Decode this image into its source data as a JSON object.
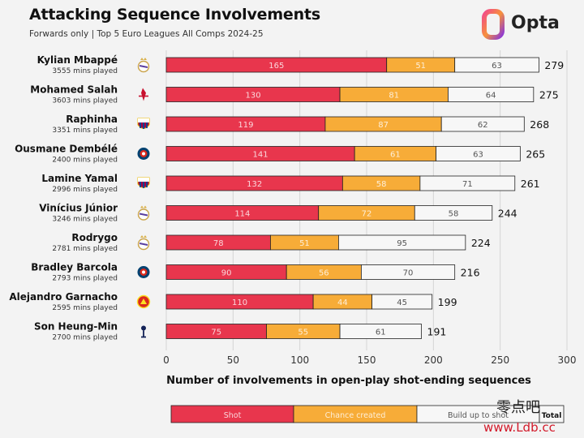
{
  "header": {
    "title": "Attacking Sequence Involvements",
    "subtitle": "Forwards only | Top 5 Euro Leagues All Comps 2024-25"
  },
  "brand": {
    "logo_text": "Opta"
  },
  "watermark": {
    "text": "零点吧",
    "url": "www.Ldb.cc"
  },
  "colors": {
    "shot": "#e8364d",
    "chance": "#f7ac38",
    "buildup": "#f7f7f7",
    "grid": "#d4d4d4"
  },
  "chart_data": {
    "type": "bar",
    "orientation": "horizontal",
    "stacked": true,
    "xlabel": "Number of involvements in open-play shot-ending sequences",
    "xlim": [
      0,
      300
    ],
    "xticks": [
      0,
      50,
      100,
      150,
      200,
      250,
      300
    ],
    "grid": true,
    "players": [
      {
        "name": "Kylian Mbappé",
        "mins": "3555 mins played",
        "crest": "real-madrid-crest-icon"
      },
      {
        "name": "Mohamed Salah",
        "mins": "3603 mins played",
        "crest": "liverpool-crest-icon"
      },
      {
        "name": "Raphinha",
        "mins": "3351 mins played",
        "crest": "barcelona-crest-icon"
      },
      {
        "name": "Ousmane Dembélé",
        "mins": "2400 mins played",
        "crest": "psg-crest-icon"
      },
      {
        "name": "Lamine Yamal",
        "mins": "2996 mins played",
        "crest": "barcelona-crest-icon"
      },
      {
        "name": "Vinícius Júnior",
        "mins": "3246 mins played",
        "crest": "real-madrid-crest-icon"
      },
      {
        "name": "Rodrygo",
        "mins": "2781 mins played",
        "crest": "real-madrid-crest-icon"
      },
      {
        "name": "Bradley Barcola",
        "mins": "2793 mins played",
        "crest": "psg-crest-icon"
      },
      {
        "name": "Alejandro Garnacho",
        "mins": "2595 mins played",
        "crest": "man-united-crest-icon"
      },
      {
        "name": "Son Heung-Min",
        "mins": "2700 mins played",
        "crest": "tottenham-crest-icon"
      }
    ],
    "series": [
      {
        "name": "Shot",
        "values": [
          165,
          130,
          119,
          141,
          132,
          114,
          78,
          90,
          110,
          75
        ]
      },
      {
        "name": "Chance created",
        "values": [
          51,
          81,
          87,
          61,
          58,
          72,
          51,
          56,
          44,
          55
        ]
      },
      {
        "name": "Build up to shot",
        "values": [
          63,
          64,
          62,
          63,
          71,
          58,
          95,
          70,
          45,
          61
        ]
      }
    ],
    "totals": [
      279,
      275,
      268,
      265,
      261,
      244,
      224,
      216,
      199,
      191
    ],
    "legend": {
      "position": "bottom",
      "total_label": "Total"
    }
  }
}
